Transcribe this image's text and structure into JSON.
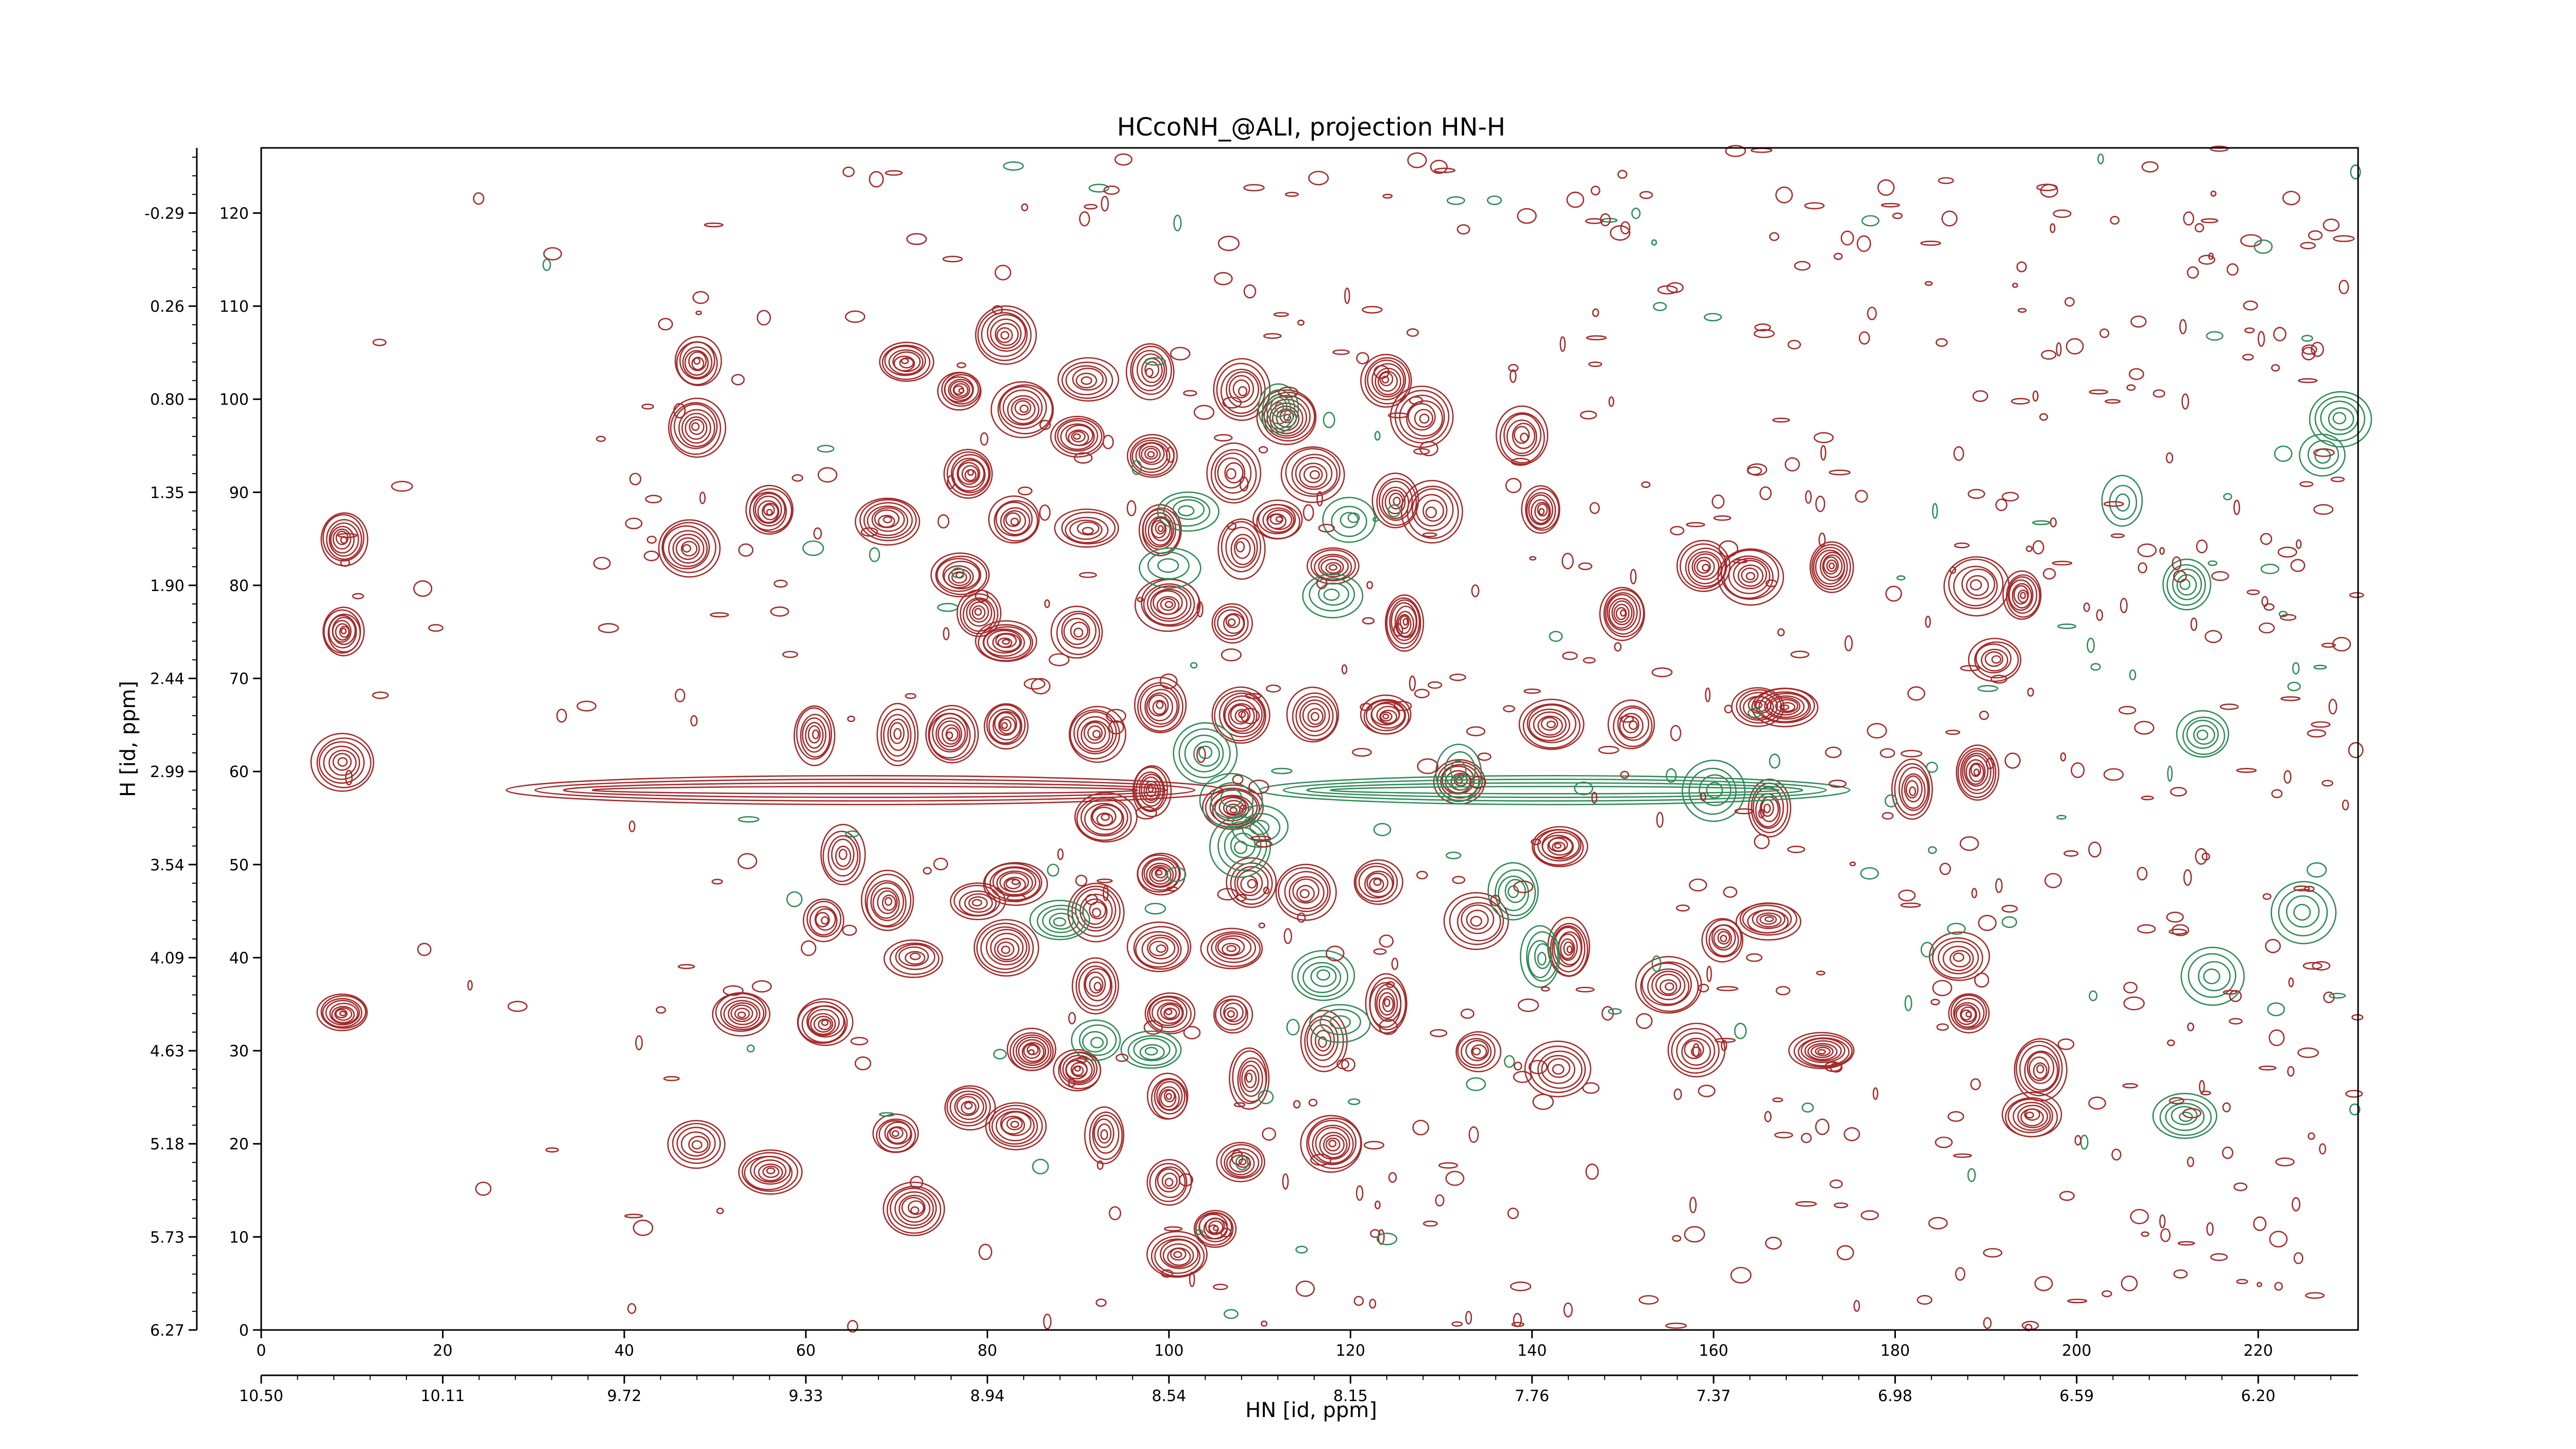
{
  "chart_data": {
    "type": "contour",
    "title": "HCcoNH_@ALI, projection HN-H",
    "xlabel": "HN [id, ppm]",
    "ylabel": "H [id, ppm]",
    "x_index": {
      "range": [
        0,
        231
      ],
      "ticks": [
        0,
        20,
        40,
        60,
        80,
        100,
        120,
        140,
        160,
        180,
        200,
        220
      ]
    },
    "x_ppm": {
      "range": [
        10.5,
        6.02
      ],
      "ticks": [
        "10.50",
        "10.11",
        "9.72",
        "9.33",
        "8.94",
        "8.54",
        "8.15",
        "7.76",
        "7.37",
        "6.98",
        "6.59",
        "6.20"
      ],
      "tick_positions": [
        0,
        20,
        40,
        60,
        80,
        100,
        120,
        140,
        160,
        180,
        200,
        220
      ]
    },
    "y_index": {
      "range": [
        0,
        127
      ],
      "ticks": [
        0,
        10,
        20,
        30,
        40,
        50,
        60,
        70,
        80,
        90,
        100,
        110,
        120
      ]
    },
    "y_ppm": {
      "range": [
        6.27,
        -0.69
      ],
      "ticks": [
        "6.27",
        "5.73",
        "5.18",
        "4.63",
        "4.09",
        "3.54",
        "2.99",
        "2.44",
        "1.90",
        "1.35",
        "0.80",
        "0.26",
        "-0.29"
      ],
      "tick_positions": [
        0,
        10,
        20,
        30,
        40,
        50,
        60,
        70,
        80,
        90,
        100,
        110,
        120
      ]
    },
    "colors": {
      "positive": "#a52a2a",
      "negative": "#2e8b57"
    },
    "peaks_positive": [
      [
        9,
        85
      ],
      [
        9,
        75
      ],
      [
        9,
        61
      ],
      [
        9,
        34
      ],
      [
        48,
        104
      ],
      [
        48,
        97
      ],
      [
        47,
        84
      ],
      [
        48,
        20
      ],
      [
        56,
        88
      ],
      [
        61,
        64
      ],
      [
        53,
        34
      ],
      [
        62,
        33
      ],
      [
        56,
        17
      ],
      [
        64,
        51
      ],
      [
        62,
        44
      ],
      [
        71,
        104
      ],
      [
        69,
        87
      ],
      [
        70,
        64
      ],
      [
        69,
        46
      ],
      [
        72,
        40
      ],
      [
        70,
        21
      ],
      [
        72,
        13
      ],
      [
        77,
        101
      ],
      [
        78,
        92
      ],
      [
        77,
        81
      ],
      [
        79,
        77
      ],
      [
        76,
        64
      ],
      [
        79,
        46
      ],
      [
        78,
        24
      ],
      [
        82,
        107
      ],
      [
        84,
        99
      ],
      [
        83,
        87
      ],
      [
        82,
        74
      ],
      [
        82,
        65
      ],
      [
        83,
        48
      ],
      [
        82,
        41
      ],
      [
        85,
        30
      ],
      [
        83,
        22
      ],
      [
        91,
        102
      ],
      [
        90,
        96
      ],
      [
        91,
        86
      ],
      [
        90,
        75
      ],
      [
        92,
        64
      ],
      [
        93,
        55
      ],
      [
        92,
        45
      ],
      [
        92,
        37
      ],
      [
        90,
        28
      ],
      [
        93,
        21
      ],
      [
        98,
        103
      ],
      [
        98,
        94
      ],
      [
        99,
        86
      ],
      [
        100,
        78
      ],
      [
        99,
        67
      ],
      [
        98,
        58
      ],
      [
        99,
        49
      ],
      [
        99,
        41
      ],
      [
        100,
        34
      ],
      [
        100,
        25
      ],
      [
        100,
        16
      ],
      [
        101,
        8
      ],
      [
        108,
        101
      ],
      [
        107,
        92
      ],
      [
        108,
        84
      ],
      [
        107,
        76
      ],
      [
        108,
        66
      ],
      [
        107,
        56
      ],
      [
        109,
        48
      ],
      [
        107,
        41
      ],
      [
        107,
        34
      ],
      [
        109,
        27
      ],
      [
        108,
        18
      ],
      [
        105,
        11
      ],
      [
        113,
        98
      ],
      [
        112,
        87
      ],
      [
        116,
        92
      ],
      [
        118,
        82
      ],
      [
        116,
        66
      ],
      [
        115,
        47
      ],
      [
        117,
        31
      ],
      [
        118,
        20
      ],
      [
        124,
        102
      ],
      [
        125,
        89
      ],
      [
        126,
        76
      ],
      [
        124,
        66
      ],
      [
        123,
        48
      ],
      [
        124,
        35
      ],
      [
        128,
        98
      ],
      [
        129,
        88
      ],
      [
        132,
        59
      ],
      [
        134,
        44
      ],
      [
        134,
        30
      ],
      [
        139,
        96
      ],
      [
        141,
        88
      ],
      [
        142,
        65
      ],
      [
        143,
        52
      ],
      [
        144,
        41
      ],
      [
        143,
        28
      ],
      [
        150,
        77
      ],
      [
        151,
        65
      ],
      [
        155,
        37
      ],
      [
        158,
        30
      ],
      [
        159,
        82
      ],
      [
        161,
        42
      ],
      [
        164,
        81
      ],
      [
        165,
        67
      ],
      [
        166,
        56
      ],
      [
        166,
        44
      ],
      [
        168,
        67
      ],
      [
        172,
        30
      ],
      [
        173,
        82
      ],
      [
        182,
        58
      ],
      [
        187,
        40
      ],
      [
        188,
        34
      ],
      [
        189,
        60
      ],
      [
        191,
        72
      ],
      [
        194,
        79
      ],
      [
        195,
        23
      ],
      [
        196,
        28
      ],
      [
        189,
        80
      ]
    ],
    "peaks_negative": [
      [
        100,
        82
      ],
      [
        102,
        88
      ],
      [
        104,
        62
      ],
      [
        107,
        57
      ],
      [
        108,
        52
      ],
      [
        110,
        54
      ],
      [
        118,
        79
      ],
      [
        120,
        87
      ],
      [
        112,
        99
      ],
      [
        119,
        33
      ],
      [
        98,
        30
      ],
      [
        92,
        31
      ],
      [
        88,
        44
      ],
      [
        117,
        38
      ],
      [
        138,
        47
      ],
      [
        141,
        40
      ],
      [
        132,
        60
      ],
      [
        160,
        58
      ],
      [
        205,
        89
      ],
      [
        212,
        80
      ],
      [
        214,
        64
      ],
      [
        215,
        38
      ],
      [
        212,
        23
      ],
      [
        225,
        45
      ],
      [
        227,
        94
      ],
      [
        229,
        98
      ]
    ],
    "ridge_positive": {
      "y": 58,
      "x_range": [
        27,
        106
      ]
    },
    "ridge_negative": {
      "y": 58,
      "x_range": [
        110,
        175
      ]
    }
  }
}
